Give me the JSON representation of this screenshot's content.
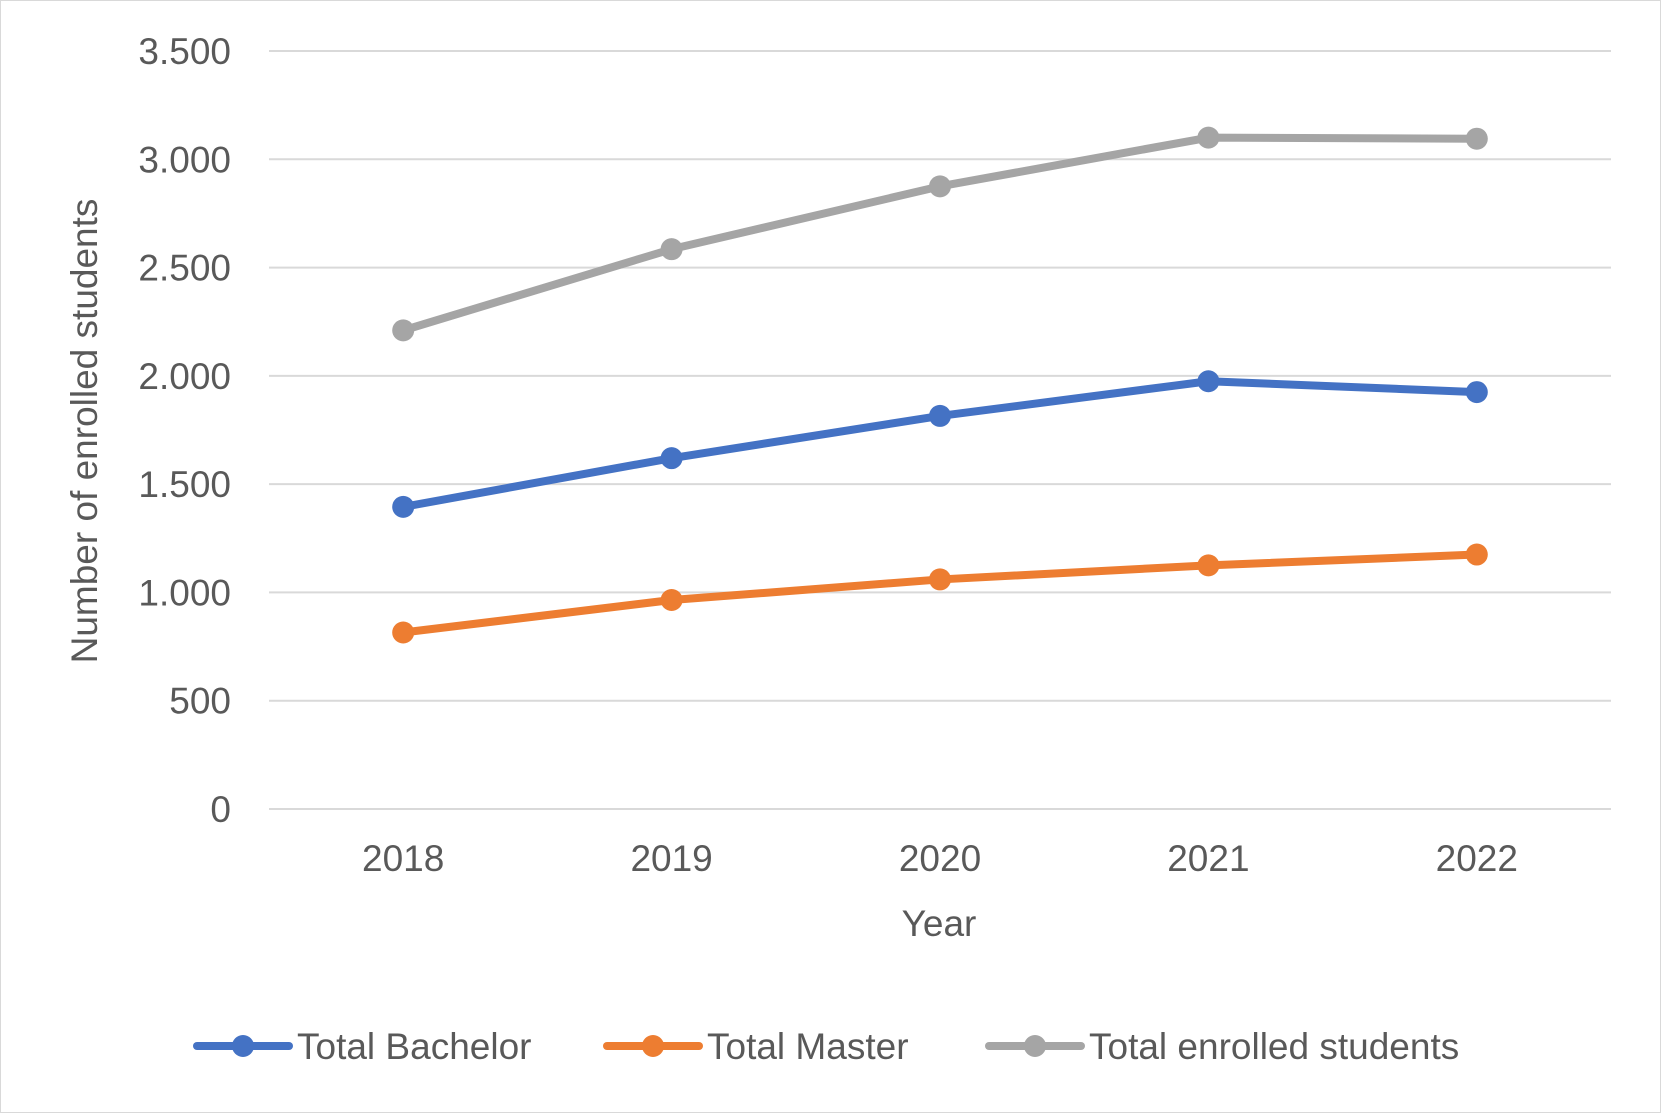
{
  "chart_data": {
    "type": "line",
    "categories": [
      "2018",
      "2019",
      "2020",
      "2021",
      "2022"
    ],
    "series": [
      {
        "name": "Total Bachelor",
        "color": "#4472c4",
        "values": [
          1395,
          1620,
          1815,
          1975,
          1925
        ]
      },
      {
        "name": "Total Master",
        "color": "#ed7d31",
        "values": [
          815,
          965,
          1060,
          1125,
          1175
        ]
      },
      {
        "name": "Total enrolled students",
        "color": "#a5a5a5",
        "values": [
          2210,
          2585,
          2875,
          3100,
          3095
        ]
      }
    ],
    "xlabel": "Year",
    "ylabel": "Number of enrolled students",
    "ylim": [
      0,
      3500
    ],
    "yticks": [
      0,
      500,
      1000,
      1500,
      2000,
      2500,
      3000,
      3500
    ],
    "ytick_labels": [
      "0",
      "500",
      "1.000",
      "1.500",
      "2.000",
      "2.500",
      "3.000",
      "3.500"
    ],
    "grid": true,
    "legend_position": "bottom",
    "gridline_color": "#d9d9d9",
    "text_color": "#595959"
  }
}
